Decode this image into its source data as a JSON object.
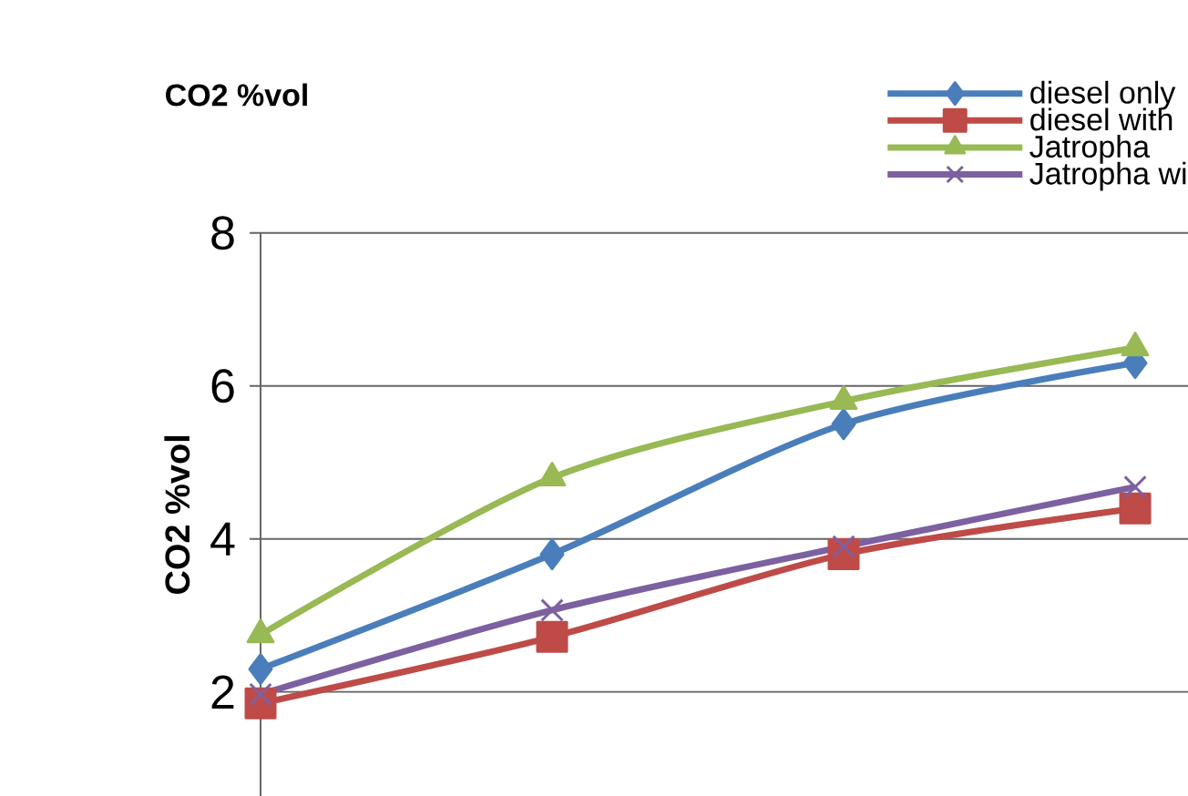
{
  "chart_data": {
    "type": "line",
    "title": "CO2 %vol",
    "ylabel": "CO2 %vol",
    "categories": [
      null,
      null,
      null,
      null
    ],
    "series": [
      {
        "name": "diesel only",
        "color": "#4a7ebb",
        "marker": "diamond",
        "values": [
          2.3,
          3.8,
          5.5,
          6.3
        ]
      },
      {
        "name": "diesel with",
        "color": "#be4b48",
        "marker": "square",
        "values": [
          1.85,
          2.72,
          3.8,
          4.4
        ]
      },
      {
        "name": "Jatropha",
        "color": "#98b954",
        "marker": "triangle",
        "values": [
          2.75,
          4.8,
          5.8,
          6.5
        ]
      },
      {
        "name": "Jatropha wi",
        "color": "#7d60a0",
        "marker": "cross",
        "values": [
          1.97,
          3.07,
          3.9,
          4.68
        ]
      }
    ],
    "ylim": [
      0.64,
      8
    ],
    "yticks": [
      2,
      4,
      6,
      8
    ],
    "grid": "y",
    "legend": "top right",
    "line_style": "solid"
  }
}
